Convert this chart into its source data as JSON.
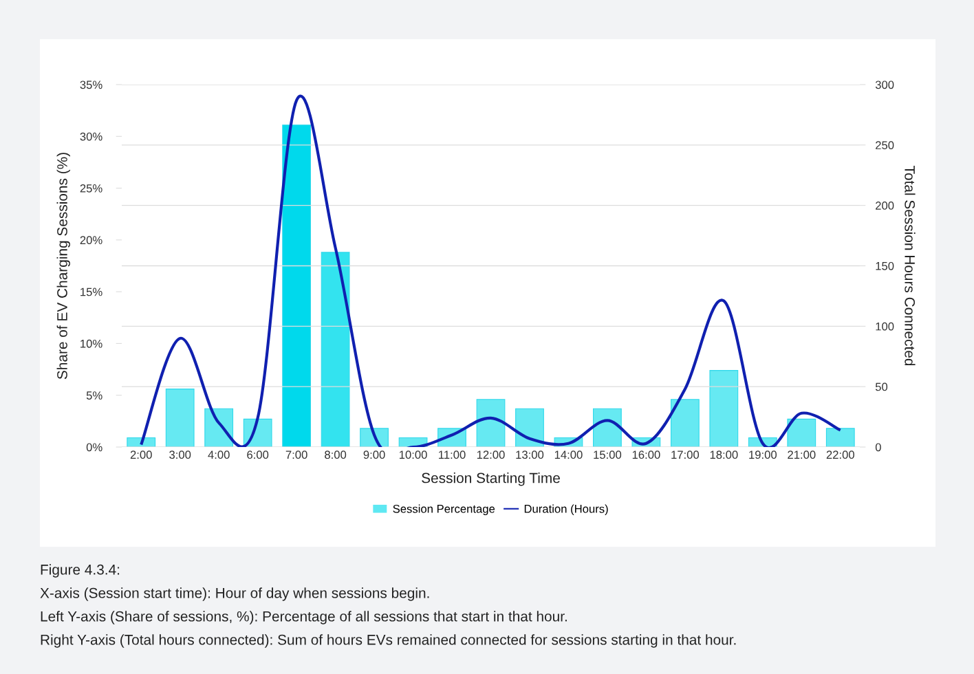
{
  "chart_data": {
    "type": "bar",
    "xlabel": "Session Starting Time",
    "ylabel": "Share of EV Charging Sessions (%)",
    "y2label": "Total Session Hours Connected",
    "categories": [
      "2:00",
      "3:00",
      "4:00",
      "6:00",
      "7:00",
      "8:00",
      "9:00",
      "10:00",
      "11:00",
      "12:00",
      "13:00",
      "14:00",
      "15:00",
      "16:00",
      "17:00",
      "18:00",
      "19:00",
      "21:00",
      "22:00"
    ],
    "series": [
      {
        "name": "Session Percentage",
        "color": "#5ee8f2",
        "colors": [
          "#66e9f2",
          "#66e9f2",
          "#66e9f2",
          "#66e9f2",
          "#00d9ec",
          "#33e3ef",
          "#66e9f2",
          "#66e9f2",
          "#66e9f2",
          "#66e9f2",
          "#66e9f2",
          "#66e9f2",
          "#66e9f2",
          "#66e9f2",
          "#66e9f2",
          "#66e9f2",
          "#66e9f2",
          "#66e9f2",
          "#66e9f2"
        ],
        "values": [
          0.9,
          5.6,
          3.7,
          2.7,
          31.1,
          18.8,
          1.8,
          0.9,
          1.8,
          4.6,
          3.7,
          0.9,
          3.7,
          0.9,
          4.6,
          7.4,
          0.9,
          2.7,
          1.8
        ]
      },
      {
        "name": "Duration (Hours)",
        "type": "line",
        "axis": "y2",
        "color": "#1020b0",
        "values": [
          2,
          90,
          20,
          24,
          287,
          165,
          10,
          0,
          10,
          24,
          7,
          3,
          22,
          3,
          48,
          121,
          3,
          28,
          14
        ]
      }
    ],
    "ylim": [
      0,
      35
    ],
    "yticks": [
      {
        "value": 0,
        "label": "0%"
      },
      {
        "value": 5,
        "label": "5%"
      },
      {
        "value": 10,
        "label": "10%"
      },
      {
        "value": 15,
        "label": "15%"
      },
      {
        "value": 20,
        "label": "20%"
      },
      {
        "value": 25,
        "label": "25%"
      },
      {
        "value": 30,
        "label": "30%"
      },
      {
        "value": 35,
        "label": "35%"
      }
    ],
    "y2lim": [
      0,
      300
    ],
    "y2ticks": [
      0,
      50,
      100,
      150,
      200,
      250,
      300
    ],
    "grid": "y2",
    "legend": "bottom",
    "marker": "none",
    "line_style": "solid",
    "annotations": [
      "Figure 4.3.4:",
      "X-axis (Session start time): Hour of day when sessions begin.",
      "Left Y-axis (Share of sessions, %): Percentage of all sessions that start in that hour.",
      "Right Y-axis (Total hours connected): Sum of hours EVs remained connected for sessions starting in that hour."
    ]
  }
}
